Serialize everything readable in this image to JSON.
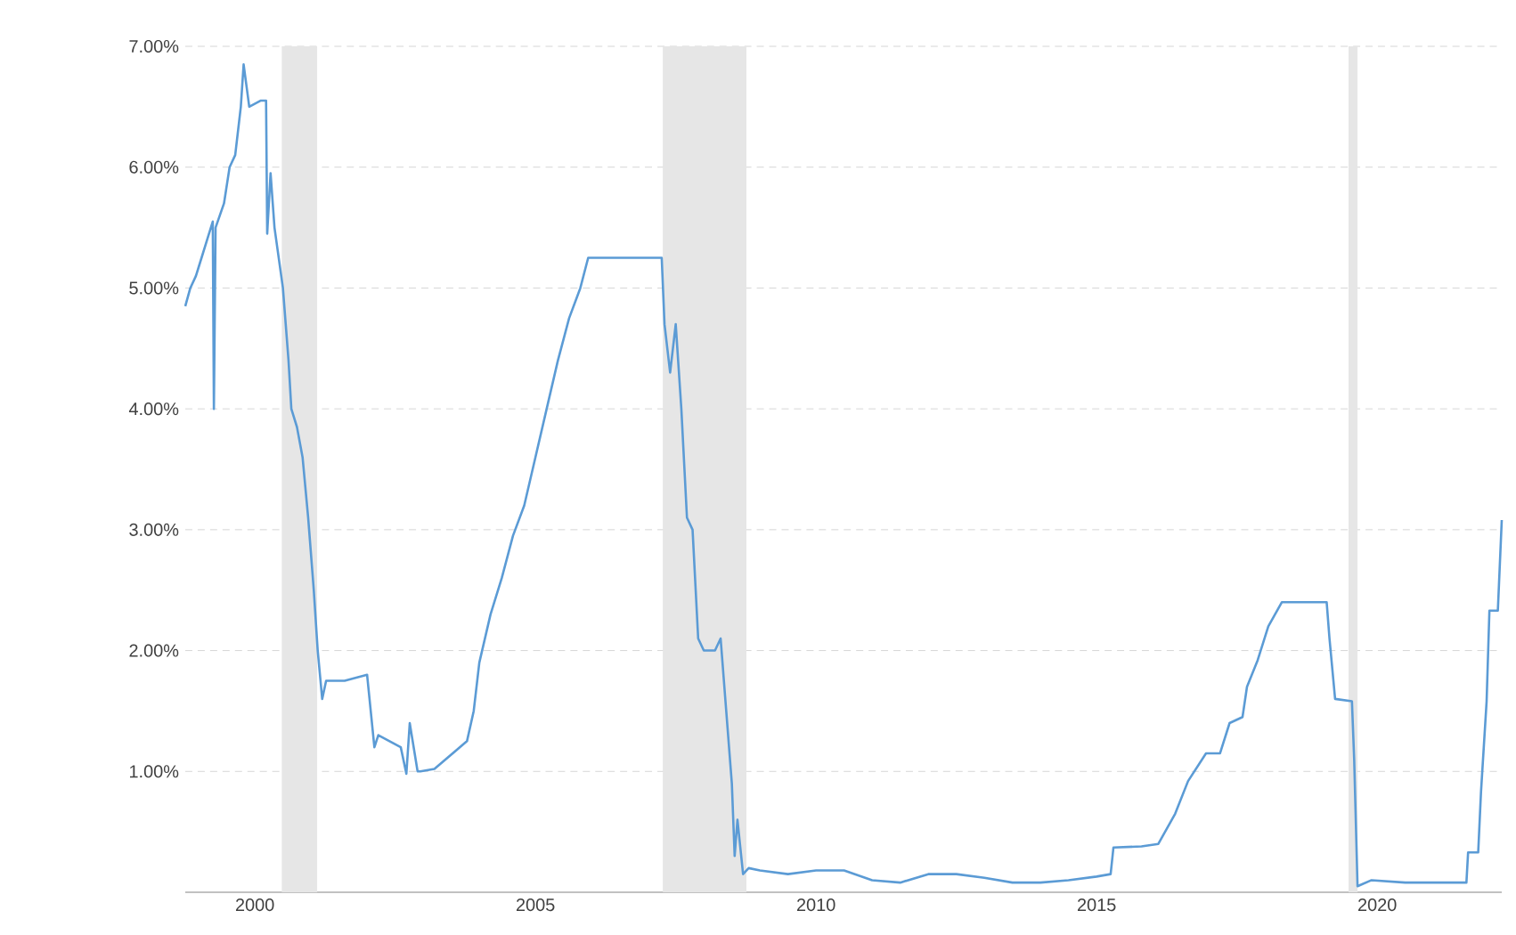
{
  "chart_data": {
    "type": "line",
    "xlim": [
      1998.76,
      2022.22
    ],
    "ylim": [
      0,
      7
    ],
    "xticks": [
      2000,
      2005,
      2010,
      2015,
      2020
    ],
    "yticks": [
      {
        "value": 1,
        "label": "1.00%"
      },
      {
        "value": 2,
        "label": "2.00%"
      },
      {
        "value": 3,
        "label": "3.00%"
      },
      {
        "value": 4,
        "label": "4.00%"
      },
      {
        "value": 5,
        "label": "5.00%"
      },
      {
        "value": 6,
        "label": "6.00%"
      },
      {
        "value": 7,
        "label": "7.00%"
      }
    ],
    "grid": "y",
    "line_style": "solid",
    "marker": "none",
    "bands": [
      {
        "axis": "x",
        "from": 2000.48,
        "to": 2001.11,
        "color": "#e6e6e6"
      },
      {
        "axis": "x",
        "from": 2007.27,
        "to": 2008.76,
        "color": "#e6e6e6"
      },
      {
        "axis": "x",
        "from": 2019.49,
        "to": 2019.65,
        "color": "#e6e6e6"
      }
    ],
    "series": [
      {
        "color": "#5b9bd5",
        "x": [
          1998.76,
          1998.85,
          1998.95,
          1999.05,
          1999.15,
          1999.25,
          1999.27,
          1999.3,
          1999.45,
          1999.55,
          1999.65,
          1999.75,
          1999.8,
          1999.9,
          2000.1,
          2000.2,
          2000.22,
          2000.28,
          2000.35,
          2000.5,
          2000.6,
          2000.65,
          2000.75,
          2000.85,
          2000.95,
          2001.05,
          2001.12,
          2001.2,
          2001.27,
          2001.4,
          2001.6,
          2002.0,
          2002.13,
          2002.2,
          2002.4,
          2002.6,
          2002.7,
          2002.76,
          2002.9,
          2002.95,
          2003.2,
          2003.78,
          2003.9,
          2004.0,
          2004.2,
          2004.4,
          2004.6,
          2004.8,
          2005.0,
          2005.2,
          2005.4,
          2005.6,
          2005.8,
          2005.94,
          2006.3,
          2006.6,
          2007.0,
          2007.25,
          2007.3,
          2007.4,
          2007.5,
          2007.6,
          2007.7,
          2007.8,
          2007.9,
          2008.0,
          2008.2,
          2008.3,
          2008.4,
          2008.5,
          2008.55,
          2008.6,
          2008.7,
          2008.8,
          2009.0,
          2009.5,
          2010.0,
          2010.5,
          2011.0,
          2011.5,
          2012.0,
          2012.5,
          2013.0,
          2013.5,
          2014.0,
          2014.5,
          2015.0,
          2015.25,
          2015.3,
          2015.8,
          2016.1,
          2016.4,
          2016.63,
          2016.95,
          2017.2,
          2017.37,
          2017.6,
          2017.68,
          2017.87,
          2018.06,
          2018.3,
          2018.7,
          2019.1,
          2019.15,
          2019.25,
          2019.55,
          2019.59,
          2019.65,
          2019.9,
          2020.5,
          2021.0,
          2021.59,
          2021.62,
          2021.8,
          2021.85,
          2021.95,
          2022.0,
          2022.15,
          2022.22
        ],
        "values": [
          4.85,
          5.0,
          5.1,
          5.25,
          5.4,
          5.55,
          4.0,
          5.5,
          5.7,
          6.0,
          6.1,
          6.5,
          6.85,
          6.5,
          6.55,
          6.55,
          5.45,
          5.95,
          5.5,
          5.0,
          4.4,
          4.0,
          3.85,
          3.6,
          3.1,
          2.5,
          2.0,
          1.6,
          1.75,
          1.75,
          1.75,
          1.8,
          1.2,
          1.3,
          1.25,
          1.2,
          0.98,
          1.4,
          1.0,
          1.0,
          1.02,
          1.25,
          1.5,
          1.9,
          2.3,
          2.6,
          2.95,
          3.2,
          3.6,
          4.0,
          4.4,
          4.75,
          5.0,
          5.25,
          5.25,
          5.25,
          5.25,
          5.25,
          4.7,
          4.3,
          4.7,
          4.0,
          3.1,
          3.0,
          2.1,
          2.0,
          2.0,
          2.1,
          1.5,
          0.9,
          0.3,
          0.6,
          0.15,
          0.2,
          0.18,
          0.15,
          0.18,
          0.18,
          0.1,
          0.08,
          0.15,
          0.15,
          0.12,
          0.08,
          0.08,
          0.1,
          0.13,
          0.15,
          0.37,
          0.38,
          0.4,
          0.65,
          0.92,
          1.15,
          1.15,
          1.4,
          1.45,
          1.7,
          1.92,
          2.2,
          2.4,
          2.4,
          2.4,
          2.1,
          1.6,
          1.58,
          1.1,
          0.05,
          0.1,
          0.08,
          0.08,
          0.08,
          0.33,
          0.33,
          0.83,
          1.58,
          2.33,
          2.33,
          3.08
        ]
      }
    ]
  }
}
